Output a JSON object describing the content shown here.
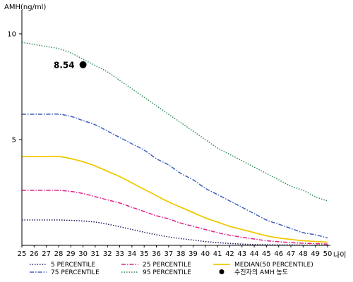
{
  "chart_data": {
    "type": "line",
    "ylabel": "AMH(ng/ml)",
    "xlabel": "나이",
    "xlim": [
      25,
      50
    ],
    "ylim": [
      0,
      11
    ],
    "x_ticks": [
      25,
      26,
      27,
      28,
      29,
      30,
      31,
      32,
      33,
      34,
      35,
      36,
      37,
      38,
      39,
      40,
      41,
      42,
      43,
      44,
      45,
      46,
      47,
      48,
      49,
      50
    ],
    "y_ticks": [
      5,
      10
    ],
    "x": [
      25,
      26,
      27,
      28,
      29,
      30,
      31,
      32,
      33,
      34,
      35,
      36,
      37,
      38,
      39,
      40,
      41,
      42,
      43,
      44,
      45,
      46,
      47,
      48,
      49,
      50
    ],
    "series": [
      {
        "name": "95 PERCENTILE",
        "color": "#2e8b57",
        "style": "dotted",
        "values": [
          9.6,
          9.5,
          9.4,
          9.3,
          9.1,
          8.8,
          8.5,
          8.2,
          7.8,
          7.4,
          7.0,
          6.6,
          6.2,
          5.8,
          5.4,
          5.0,
          4.6,
          4.3,
          4.0,
          3.7,
          3.4,
          3.1,
          2.8,
          2.6,
          2.3,
          2.1
        ]
      },
      {
        "name": "75 PERCENTILE",
        "color": "#3f5fbf",
        "style": "dashdot",
        "values": [
          6.2,
          6.2,
          6.2,
          6.2,
          6.1,
          5.9,
          5.7,
          5.4,
          5.1,
          4.8,
          4.5,
          4.1,
          3.8,
          3.4,
          3.1,
          2.7,
          2.4,
          2.1,
          1.8,
          1.5,
          1.2,
          1.0,
          0.8,
          0.6,
          0.5,
          0.35
        ]
      },
      {
        "name": "MEDIAN(50 PERCENTILE)",
        "color": "#f2c800",
        "style": "solid",
        "values": [
          4.2,
          4.2,
          4.2,
          4.2,
          4.1,
          3.95,
          3.75,
          3.5,
          3.25,
          2.95,
          2.65,
          2.35,
          2.05,
          1.8,
          1.55,
          1.3,
          1.1,
          0.9,
          0.75,
          0.6,
          0.45,
          0.35,
          0.28,
          0.22,
          0.18,
          0.15
        ]
      },
      {
        "name": "25 PERCENTILE",
        "color": "#e0218a",
        "style": "dashdot",
        "values": [
          2.6,
          2.6,
          2.6,
          2.6,
          2.55,
          2.45,
          2.3,
          2.15,
          2.0,
          1.8,
          1.6,
          1.4,
          1.25,
          1.05,
          0.9,
          0.75,
          0.6,
          0.48,
          0.38,
          0.3,
          0.22,
          0.17,
          0.13,
          0.1,
          0.08,
          0.06
        ]
      },
      {
        "name": "5 PERCENTILE",
        "color": "#1a1a5e",
        "style": "dotted",
        "values": [
          1.2,
          1.2,
          1.2,
          1.2,
          1.18,
          1.15,
          1.1,
          1.0,
          0.88,
          0.75,
          0.62,
          0.5,
          0.4,
          0.32,
          0.25,
          0.18,
          0.13,
          0.09,
          0.06,
          0.04,
          0.03,
          0.02,
          0.02,
          0.01,
          0.01,
          0.01
        ]
      }
    ],
    "annotation": {
      "name": "수진자의 AMH 농도",
      "x": 30,
      "y": 8.54,
      "label": "8.54"
    },
    "legend_order": [
      "5 PERCENTILE",
      "25 PERCENTILE",
      "MEDIAN(50 PERCENTILE)",
      "75 PERCENTILE",
      "95 PERCENTILE",
      "수진자의 AMH 농도"
    ],
    "legend_position": "bottom",
    "grid": false
  }
}
